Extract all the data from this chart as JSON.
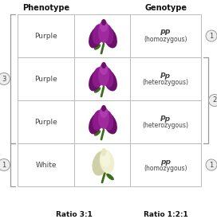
{
  "title_phenotype": "Phenotype",
  "title_genotype": "Genotype",
  "rows": [
    {
      "phenotype_text": "Purple",
      "genotype_line1": "PP",
      "genotype_line2": "(homozygous)",
      "flower_color": "purple",
      "right_circle": "1"
    },
    {
      "phenotype_text": "Purple",
      "genotype_line1": "Pp",
      "genotype_line2": "(heterozygous)",
      "flower_color": "purple",
      "right_circle": null
    },
    {
      "phenotype_text": "Purple",
      "genotype_line1": "Pp",
      "genotype_line2": "(heterozygous)",
      "flower_color": "purple",
      "right_circle": null
    },
    {
      "phenotype_text": "White",
      "genotype_line1": "pp",
      "genotype_line2": "(homozygous)",
      "flower_color": "white",
      "right_circle": "1"
    }
  ],
  "ratio_left": "Ratio 3:1",
  "ratio_right": "Ratio 1:2:1",
  "bg": "#ffffff",
  "grid_color": "#bbbbbb",
  "bracket_color": "#999999",
  "circle_face": "#eeeeee",
  "circle_edge": "#999999",
  "text_color": "#444444",
  "title_color": "#111111",
  "p_petal1": "#8B1A8B",
  "p_petal2": "#9E2A9E",
  "p_petal3": "#B03AB0",
  "p_shadow": "#6A0F6A",
  "p_stem": "#3a6e1a",
  "w_petal1": "#e8e8c0",
  "w_petal2": "#f0f0d0",
  "w_petal3": "#f5f5dc",
  "w_shadow": "#d0d0a8",
  "w_stem": "#3a6e1a"
}
